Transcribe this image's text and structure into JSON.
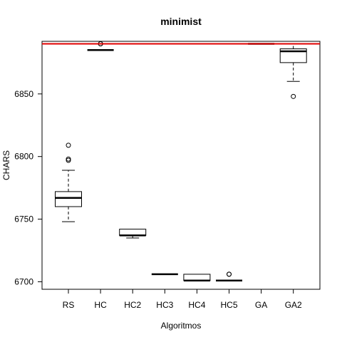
{
  "chart_data": {
    "type": "boxplot",
    "title": "minimist",
    "xlabel": "Algoritmos",
    "ylabel": "CHARS",
    "ylim": [
      6694,
      6892
    ],
    "yticks": [
      6700,
      6750,
      6800,
      6850
    ],
    "reference_line": {
      "value": 6890,
      "color": "#e00000"
    },
    "box_color": "#000000",
    "categories": [
      "RS",
      "HC",
      "HC2",
      "HC3",
      "HC4",
      "HC5",
      "GA",
      "GA2"
    ],
    "boxes": [
      {
        "label": "RS",
        "whisker_low": 6748,
        "q1": 6760,
        "median": 6767,
        "q3": 6772,
        "whisker_high": 6789,
        "outliers": [
          6797,
          6798,
          6809
        ]
      },
      {
        "label": "HC",
        "whisker_low": 6885,
        "q1": 6885,
        "median": 6885,
        "q3": 6885,
        "whisker_high": 6885,
        "outliers": [
          6890,
          6890
        ]
      },
      {
        "label": "HC2",
        "whisker_low": 6735,
        "q1": 6737,
        "median": 6737,
        "q3": 6742,
        "whisker_high": 6742,
        "outliers": []
      },
      {
        "label": "HC3",
        "whisker_low": 6706,
        "q1": 6706,
        "median": 6706,
        "q3": 6706,
        "whisker_high": 6706,
        "outliers": []
      },
      {
        "label": "HC4",
        "whisker_low": 6701,
        "q1": 6701,
        "median": 6701,
        "q3": 6706,
        "whisker_high": 6706,
        "outliers": []
      },
      {
        "label": "HC5",
        "whisker_low": 6701,
        "q1": 6701,
        "median": 6701,
        "q3": 6701,
        "whisker_high": 6701,
        "outliers": [
          6706,
          6706
        ]
      },
      {
        "label": "GA",
        "whisker_low": 6890,
        "q1": 6890,
        "median": 6890,
        "q3": 6890,
        "whisker_high": 6890,
        "outliers": []
      },
      {
        "label": "GA2",
        "whisker_low": 6860,
        "q1": 6875,
        "median": 6884,
        "q3": 6886,
        "whisker_high": 6890,
        "outliers": [
          6848
        ]
      }
    ]
  }
}
